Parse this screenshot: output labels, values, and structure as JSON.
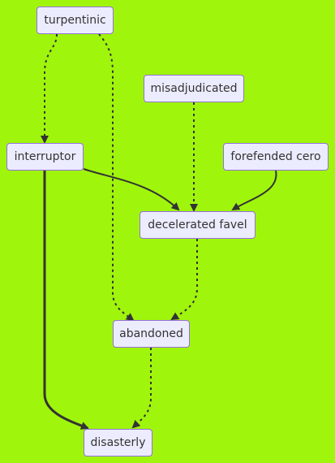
{
  "diagram": {
    "background": "#a0f50c",
    "node_fill": "#ececff",
    "node_border": "#9370db",
    "edge_color": "#333333",
    "nodes": {
      "turpentinic": "turpentinic",
      "misadjudicated": "misadjudicated",
      "interruptor": "interruptor",
      "forefended_cero": "forefended cero",
      "decelerated_favel": "decelerated favel",
      "abandoned": "abandoned",
      "disasterly": "disasterly"
    },
    "edges": [
      {
        "from": "turpentinic",
        "to": "interruptor",
        "style": "dotted"
      },
      {
        "from": "turpentinic",
        "to": "abandoned",
        "style": "dotted"
      },
      {
        "from": "misadjudicated",
        "to": "decelerated favel",
        "style": "dotted"
      },
      {
        "from": "interruptor",
        "to": "decelerated favel",
        "style": "solid"
      },
      {
        "from": "forefended cero",
        "to": "decelerated favel",
        "style": "solid"
      },
      {
        "from": "interruptor",
        "to": "disasterly",
        "style": "thick"
      },
      {
        "from": "decelerated favel",
        "to": "abandoned",
        "style": "dotted"
      },
      {
        "from": "abandoned",
        "to": "disasterly",
        "style": "dotted"
      }
    ]
  }
}
